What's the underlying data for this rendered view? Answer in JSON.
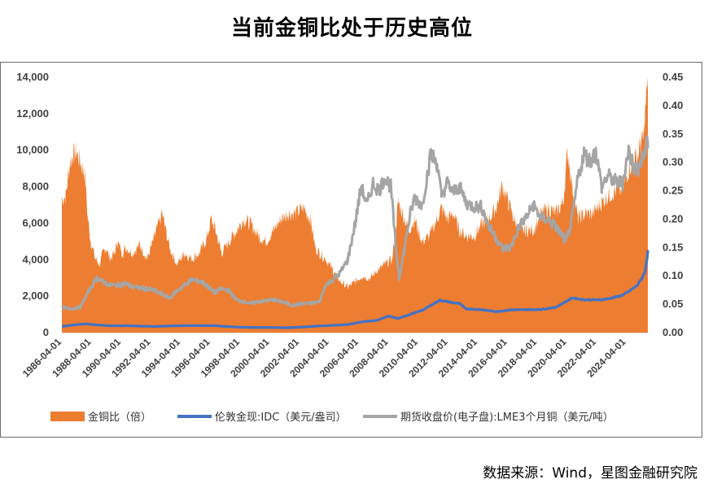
{
  "page": {
    "title": "当前金铜比处于历史高位",
    "source": "数据来源：Wind，星图金融研究院"
  },
  "colors": {
    "ratio": "#ED7D31",
    "gold": "#4472C4",
    "copper": "#A5A5A5",
    "axis_text": "#404040"
  },
  "chart_data": {
    "type": "area+line",
    "title": "当前金铜比处于历史高位",
    "x_tick_labels": [
      "1986-04-01",
      "1988-04-01",
      "1990-04-01",
      "1992-04-01",
      "1994-04-01",
      "1996-04-01",
      "1998-04-01",
      "2000-04-01",
      "2002-04-01",
      "2004-04-01",
      "2006-04-01",
      "2008-04-01",
      "2010-04-01",
      "2012-04-01",
      "2014-04-01",
      "2016-04-01",
      "2018-04-01",
      "2020-04-01",
      "2022-04-01",
      "2024-04-01"
    ],
    "x_range": [
      1986.25,
      2025.7
    ],
    "y_left": {
      "range": [
        0,
        14000
      ],
      "tick_labels": [
        "0",
        "2,000",
        "4,000",
        "6,000",
        "8,000",
        "10,000",
        "12,000",
        "14,000"
      ],
      "tick_values": [
        0,
        2000,
        4000,
        6000,
        8000,
        10000,
        12000,
        14000
      ]
    },
    "y_right": {
      "range": [
        0,
        0.45
      ],
      "tick_labels": [
        "0.00",
        "0.05",
        "0.10",
        "0.15",
        "0.20",
        "0.25",
        "0.30",
        "0.35",
        "0.40",
        "0.45"
      ],
      "tick_values": [
        0,
        0.05,
        0.1,
        0.15,
        0.2,
        0.25,
        0.3,
        0.35,
        0.4,
        0.45
      ]
    },
    "series": [
      {
        "name": "金铜比（倍）",
        "kind": "area",
        "axis": "right",
        "x": [
          1986.25,
          1986.5,
          1986.8,
          1987.0,
          1987.2,
          1987.5,
          1987.8,
          1988.0,
          1988.2,
          1988.5,
          1988.8,
          1989.0,
          1989.2,
          1989.5,
          1989.8,
          1990.0,
          1990.3,
          1990.6,
          1991.0,
          1991.5,
          1992.0,
          1992.5,
          1993.0,
          1993.5,
          1994.0,
          1994.5,
          1995.0,
          1995.5,
          1996.0,
          1996.3,
          1996.6,
          1997.0,
          1997.5,
          1998.0,
          1998.5,
          1999.0,
          1999.5,
          2000.0,
          2000.5,
          2001.0,
          2001.5,
          2002.0,
          2002.5,
          2003.0,
          2003.3,
          2003.6,
          2004.0,
          2004.5,
          2005.0,
          2005.5,
          2006.0,
          2006.5,
          2007.0,
          2007.5,
          2008.0,
          2008.5,
          2008.9,
          2009.2,
          2009.6,
          2010.0,
          2010.5,
          2011.0,
          2011.5,
          2011.8,
          2012.2,
          2012.6,
          2013.0,
          2013.5,
          2014.0,
          2014.5,
          2015.0,
          2015.5,
          2015.9,
          2016.3,
          2016.7,
          2017.0,
          2017.5,
          2018.0,
          2018.5,
          2019.0,
          2019.5,
          2020.0,
          2020.3,
          2020.6,
          2021.0,
          2021.5,
          2022.0,
          2022.3,
          2022.6,
          2023.0,
          2023.5,
          2024.0,
          2024.3,
          2024.6,
          2025.0,
          2025.2,
          2025.4,
          2025.6,
          2025.7
        ],
        "y": [
          0.235,
          0.24,
          0.3,
          0.31,
          0.32,
          0.3,
          0.28,
          0.2,
          0.16,
          0.13,
          0.12,
          0.14,
          0.15,
          0.13,
          0.14,
          0.16,
          0.14,
          0.15,
          0.14,
          0.155,
          0.13,
          0.17,
          0.21,
          0.15,
          0.12,
          0.14,
          0.13,
          0.14,
          0.165,
          0.2,
          0.18,
          0.14,
          0.16,
          0.18,
          0.2,
          0.19,
          0.17,
          0.16,
          0.18,
          0.2,
          0.21,
          0.21,
          0.22,
          0.2,
          0.15,
          0.14,
          0.13,
          0.11,
          0.09,
          0.08,
          0.09,
          0.1,
          0.095,
          0.11,
          0.12,
          0.13,
          0.23,
          0.21,
          0.18,
          0.2,
          0.16,
          0.17,
          0.2,
          0.22,
          0.2,
          0.21,
          0.18,
          0.17,
          0.17,
          0.19,
          0.2,
          0.22,
          0.26,
          0.23,
          0.2,
          0.18,
          0.18,
          0.18,
          0.21,
          0.22,
          0.21,
          0.23,
          0.32,
          0.26,
          0.2,
          0.21,
          0.21,
          0.22,
          0.23,
          0.24,
          0.25,
          0.25,
          0.28,
          0.3,
          0.31,
          0.33,
          0.34,
          0.42,
          0.43
        ]
      },
      {
        "name": "伦敦金现:IDC（美元/盎司）",
        "kind": "line",
        "axis": "left",
        "x": [
          1986.25,
          1987.0,
          1987.9,
          1988.5,
          1989.5,
          1990.5,
          1991.5,
          1992.5,
          1993.5,
          1994.5,
          1995.5,
          1996.5,
          1997.5,
          1998.5,
          1999.5,
          2000.5,
          2001.5,
          2002.5,
          2003.5,
          2004.5,
          2005.5,
          2006.5,
          2007.5,
          2008.2,
          2008.9,
          2009.5,
          2010.5,
          2011.7,
          2012.5,
          2013.0,
          2013.5,
          2014.5,
          2015.5,
          2016.5,
          2017.5,
          2018.5,
          2019.5,
          2020.6,
          2021.5,
          2022.5,
          2023.0,
          2023.5,
          2024.0,
          2024.5,
          2025.0,
          2025.3,
          2025.5,
          2025.7
        ],
        "y": [
          340,
          420,
          480,
          430,
          380,
          380,
          360,
          340,
          370,
          385,
          385,
          385,
          330,
          295,
          285,
          280,
          270,
          310,
          360,
          400,
          445,
          600,
          680,
          900,
          780,
          950,
          1220,
          1780,
          1650,
          1600,
          1300,
          1260,
          1150,
          1250,
          1260,
          1270,
          1390,
          1900,
          1800,
          1800,
          1850,
          1950,
          2050,
          2300,
          2600,
          3000,
          3300,
          4400
        ]
      },
      {
        "name": "期货收盘价(电子盘):LME3个月铜（美元/吨）",
        "kind": "line",
        "axis": "left",
        "x": [
          1986.25,
          1986.8,
          1987.5,
          1988.0,
          1988.6,
          1989.0,
          1989.5,
          1990.0,
          1990.5,
          1991.0,
          1992.0,
          1992.5,
          1993.0,
          1993.5,
          1994.0,
          1994.5,
          1995.0,
          1995.6,
          1996.0,
          1996.5,
          1997.0,
          1997.5,
          1998.0,
          1999.0,
          1999.5,
          2000.5,
          2001.0,
          2001.8,
          2002.5,
          2003.0,
          2003.6,
          2004.0,
          2004.5,
          2005.0,
          2005.5,
          2006.0,
          2006.4,
          2006.8,
          2007.2,
          2007.6,
          2008.0,
          2008.4,
          2008.7,
          2008.95,
          2009.3,
          2009.7,
          2010.0,
          2010.5,
          2011.1,
          2011.5,
          2011.8,
          2012.2,
          2012.6,
          2013.0,
          2013.5,
          2014.0,
          2014.5,
          2015.0,
          2015.5,
          2015.9,
          2016.5,
          2017.0,
          2017.5,
          2018.0,
          2018.5,
          2019.0,
          2019.5,
          2020.2,
          2020.6,
          2021.0,
          2021.4,
          2021.8,
          2022.2,
          2022.6,
          2023.0,
          2023.5,
          2024.0,
          2024.4,
          2024.8,
          2025.0,
          2025.3,
          2025.5,
          2025.7
        ],
        "y": [
          1400,
          1300,
          1400,
          2200,
          3000,
          2800,
          2600,
          2600,
          2700,
          2500,
          2400,
          2300,
          2100,
          1900,
          2300,
          2600,
          2900,
          2800,
          2600,
          2200,
          2400,
          2300,
          1800,
          1600,
          1700,
          1800,
          1700,
          1500,
          1600,
          1600,
          1700,
          2600,
          2900,
          3300,
          4000,
          6000,
          8000,
          7000,
          8200,
          7800,
          8500,
          8000,
          5000,
          3000,
          4500,
          6500,
          7400,
          7000,
          9800,
          9300,
          7500,
          8200,
          7700,
          8000,
          7100,
          6900,
          6900,
          5800,
          5200,
          4600,
          4700,
          5800,
          6300,
          7000,
          6300,
          6200,
          5800,
          5000,
          6200,
          8500,
          9800,
          9400,
          9900,
          8000,
          8600,
          8300,
          8200,
          10000,
          9000,
          9000,
          9500,
          9800,
          10500
        ]
      }
    ],
    "legend_position": "bottom"
  }
}
